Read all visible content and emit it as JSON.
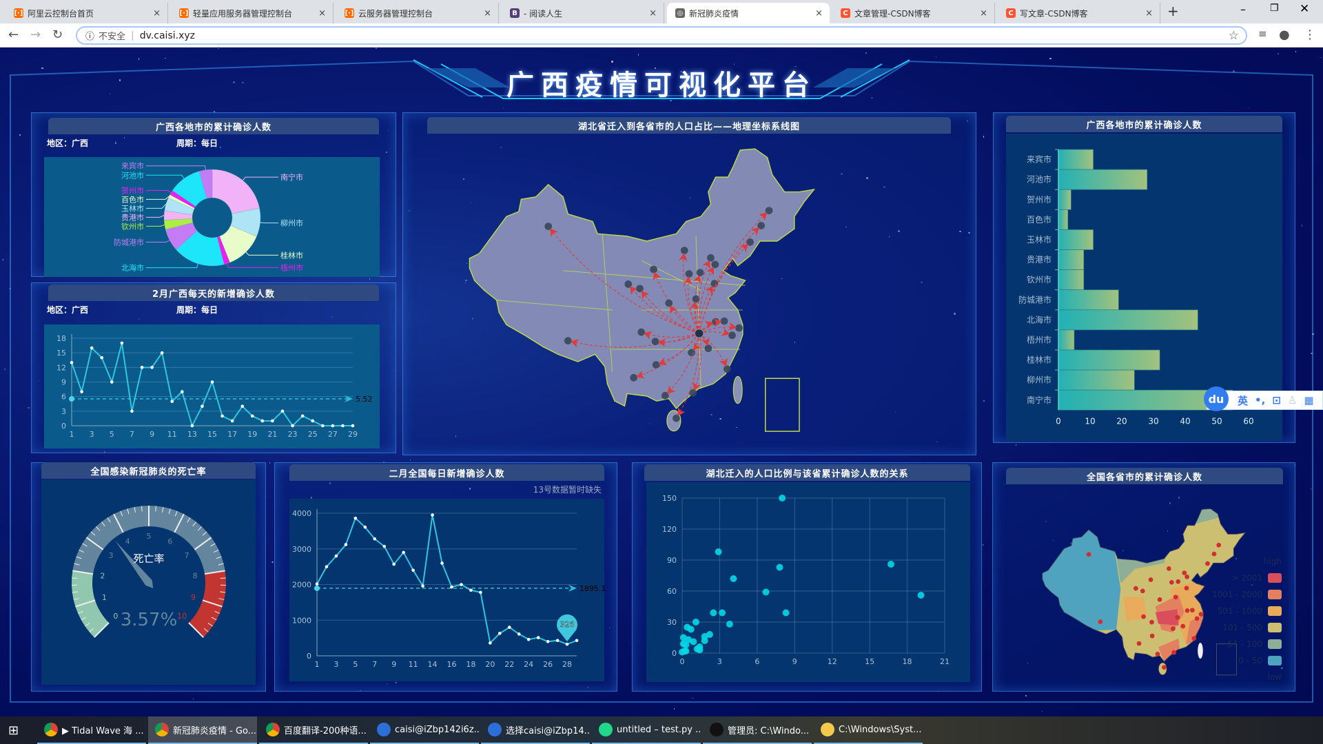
{
  "browser": {
    "tabs": [
      {
        "label": "阿里云控制台首页",
        "icon": "aliyun-icon",
        "color": "#ff6a00"
      },
      {
        "label": "轻量应用服务器管理控制台",
        "icon": "aliyun-icon",
        "color": "#ff6a00"
      },
      {
        "label": "云服务器管理控制台",
        "icon": "aliyun-icon",
        "color": "#ff6a00"
      },
      {
        "label": "- 阅读人生",
        "icon": "bootstrap-icon",
        "color": "#563d7c"
      },
      {
        "label": "新冠肺炎疫情",
        "icon": "globe-icon",
        "color": "#666666",
        "active": true
      },
      {
        "label": "文章管理-CSDN博客",
        "icon": "csdn-icon",
        "color": "#fc5531"
      },
      {
        "label": "写文章-CSDN博客",
        "icon": "csdn-icon",
        "color": "#fc5531"
      }
    ],
    "security": "不安全",
    "url": "dv.caisi.xyz",
    "new_tab": "+",
    "fav_glyphs": [
      "[·]",
      "[·]",
      "[·]",
      "B",
      "◎",
      "C",
      "C"
    ]
  },
  "dashboard": {
    "title": "广西疫情可视化平台",
    "region_label": "地区：广西",
    "period_label": "周期：每日"
  },
  "pie": {
    "title": "广西各地市的累计确诊人数"
  },
  "gx_line": {
    "title": "2月广西每天的新增确诊人数"
  },
  "migration_map": {
    "title": "湖北省迁入到各省市的人口占比——地理坐标系线图",
    "colors": {
      "land": "#8a90b8",
      "border": "#c8e640",
      "line": "#e03b3b",
      "dot": "#36475a"
    }
  },
  "bar": {
    "title": "广西各地市的累计确诊人数"
  },
  "gauge": {
    "title": "全国感染新冠肺炎的死亡率"
  },
  "cn_line": {
    "title": "二月全国每日新增确诊人数",
    "note": "13号数据暂时缺失"
  },
  "scatter": {
    "title": "湖北迁入的人口比例与该省累计确诊人数的关系"
  },
  "cn_map": {
    "title": "全国各省市的累计确诊人数",
    "legend_high": "high",
    "legend_low": "low",
    "pieces": [
      {
        "label": "> 2001",
        "color": "#d94e5d"
      },
      {
        "label": "1001 - 2000",
        "color": "#e3805f"
      },
      {
        "label": "501 - 1000",
        "color": "#e8ab5b"
      },
      {
        "label": "101 - 500",
        "color": "#cdbf72"
      },
      {
        "label": "51 - 100",
        "color": "#8fae98"
      },
      {
        "label": "0 - 50",
        "color": "#4fa3bf"
      }
    ]
  },
  "ime": {
    "logo": "du",
    "lang": "英",
    "punct": "•,"
  },
  "taskbar": {
    "items": [
      {
        "label": "▶ Tidal Wave 海 ...",
        "icon": "chrome-icon"
      },
      {
        "label": "新冠肺炎疫情 - Go...",
        "icon": "chrome-icon",
        "active": true
      },
      {
        "label": "百度翻译-200种语...",
        "icon": "chrome-icon"
      },
      {
        "label": "caisi@iZbp142i6z...",
        "icon": "terminal-icon"
      },
      {
        "label": "选择caisi@iZbp14...",
        "icon": "terminal-icon"
      },
      {
        "label": "untitled – test.py ...",
        "icon": "pycharm-icon"
      },
      {
        "label": "管理员: C:\\Windo...",
        "icon": "cmd-icon"
      },
      {
        "label": "C:\\Windows\\Syst...",
        "icon": "folder-icon"
      }
    ]
  },
  "chart_data": [
    {
      "id": "pie",
      "type": "pie",
      "title": "广西各地市的累计确诊人数",
      "donut": true,
      "categories": [
        "南宁市",
        "柳州市",
        "桂林市",
        "梧州市",
        "北海市",
        "防城港市",
        "钦州市",
        "贵港市",
        "玉林市",
        "百色市",
        "贺州市",
        "河池市",
        "来宾市"
      ],
      "values": [
        55,
        24,
        32,
        5,
        44,
        19,
        8,
        8,
        11,
        3,
        4,
        28,
        11
      ],
      "colors": [
        "#f1b2f7",
        "#aee4f6",
        "#e7fcc9",
        "#ee1ef0",
        "#1ee6fa",
        "#c37cf5",
        "#adee45",
        "#f5b3f5",
        "#aee4f6",
        "#e8fcc7",
        "#ee1ef0",
        "#1ee6fa",
        "#c37cf5"
      ]
    },
    {
      "id": "gx_line",
      "type": "line",
      "title": "2月广西每天的新增确诊人数",
      "x": [
        1,
        2,
        3,
        4,
        5,
        6,
        7,
        8,
        9,
        10,
        11,
        12,
        13,
        14,
        15,
        16,
        17,
        18,
        19,
        20,
        21,
        22,
        23,
        24,
        25,
        26,
        27,
        28,
        29
      ],
      "values": [
        13,
        7,
        16,
        14,
        9,
        17,
        3,
        12,
        12,
        15,
        5,
        7,
        0,
        4,
        9,
        2,
        1,
        4,
        2,
        1,
        1,
        3,
        0,
        2,
        1,
        0,
        0,
        0,
        0
      ],
      "xticks": [
        1,
        3,
        5,
        7,
        9,
        11,
        13,
        15,
        17,
        19,
        21,
        23,
        25,
        27,
        29
      ],
      "yticks": [
        0,
        3,
        6,
        9,
        12,
        15,
        18
      ],
      "ylim": [
        0,
        18
      ],
      "average_line": 5.52,
      "average_label": "5.52",
      "grid": true
    },
    {
      "id": "bar",
      "type": "bar",
      "orientation": "horizontal",
      "title": "广西各地市的累计确诊人数",
      "categories": [
        "来宾市",
        "河池市",
        "贺州市",
        "百色市",
        "玉林市",
        "贵港市",
        "钦州市",
        "防城港市",
        "北海市",
        "梧州市",
        "桂林市",
        "柳州市",
        "南宁市"
      ],
      "values": [
        11,
        28,
        4,
        3,
        11,
        8,
        8,
        19,
        44,
        5,
        32,
        24,
        55
      ],
      "xticks": [
        0,
        10,
        20,
        30,
        40,
        50,
        60
      ],
      "xlim": [
        0,
        60
      ],
      "colors": [
        "#22b1b5",
        "#a3c27d"
      ]
    },
    {
      "id": "gauge",
      "type": "gauge",
      "title": "全国感染新冠肺炎的死亡率",
      "name": "死亡率",
      "value": 3.57,
      "display": "3.57%",
      "min": 0,
      "max": 10,
      "ticks": [
        0,
        1,
        2,
        3,
        4,
        5,
        6,
        7,
        8,
        9,
        10
      ],
      "bands": [
        {
          "to": 2,
          "color": "#91c7ae"
        },
        {
          "to": 8,
          "color": "#63869e"
        },
        {
          "to": 10,
          "color": "#c23531"
        }
      ]
    },
    {
      "id": "cn_line",
      "type": "line",
      "title": "二月全国每日新增确诊人数",
      "note": "13号数据暂时缺失",
      "x": [
        1,
        2,
        3,
        4,
        5,
        6,
        7,
        8,
        9,
        10,
        11,
        12,
        14,
        15,
        16,
        17,
        18,
        19,
        20,
        21,
        22,
        23,
        24,
        25,
        26,
        27,
        28,
        29
      ],
      "values": [
        2015,
        2500,
        2800,
        3120,
        3860,
        3610,
        3280,
        3070,
        2570,
        2900,
        2400,
        1960,
        3950,
        2600,
        1930,
        2000,
        1840,
        1780,
        360,
        630,
        800,
        610,
        460,
        510,
        400,
        430,
        326,
        430
      ],
      "xticks": [
        1,
        3,
        5,
        7,
        9,
        11,
        14,
        16,
        18,
        20,
        22,
        24,
        26,
        28
      ],
      "yticks": [
        0,
        1000,
        2000,
        3000,
        4000
      ],
      "ylim": [
        0,
        4000
      ],
      "average_line": 1895.1,
      "average_label": "1895.1",
      "min_marker": {
        "x": 28,
        "label": "326"
      },
      "grid": true
    },
    {
      "id": "scatter",
      "type": "scatter",
      "title": "湖北迁入的人口比例与该省累计确诊人数的关系",
      "points": [
        [
          8.0,
          150
        ],
        [
          2.9,
          98
        ],
        [
          16.7,
          86
        ],
        [
          7.8,
          83
        ],
        [
          4.1,
          72
        ],
        [
          6.7,
          59
        ],
        [
          19.1,
          56
        ],
        [
          2.5,
          39
        ],
        [
          3.2,
          39
        ],
        [
          8.3,
          39
        ],
        [
          1.1,
          30
        ],
        [
          3.8,
          28
        ],
        [
          0.4,
          25
        ],
        [
          0.7,
          23
        ],
        [
          2.2,
          18
        ],
        [
          1.8,
          16
        ],
        [
          0.1,
          15
        ],
        [
          0.5,
          13
        ],
        [
          1.8,
          12
        ],
        [
          0.9,
          11
        ],
        [
          0.1,
          9
        ],
        [
          0.3,
          8
        ],
        [
          1.4,
          6
        ],
        [
          1.2,
          4
        ],
        [
          1.4,
          3
        ],
        [
          0.3,
          2
        ],
        [
          0.0,
          1
        ],
        [
          0.2,
          2
        ]
      ],
      "xticks": [
        0,
        3,
        6,
        9,
        12,
        15,
        18,
        21
      ],
      "yticks": [
        0,
        30,
        60,
        90,
        120,
        150
      ],
      "xlim": [
        0,
        21
      ],
      "ylim": [
        0,
        150
      ],
      "color": "#00d8e6",
      "grid": true
    }
  ]
}
